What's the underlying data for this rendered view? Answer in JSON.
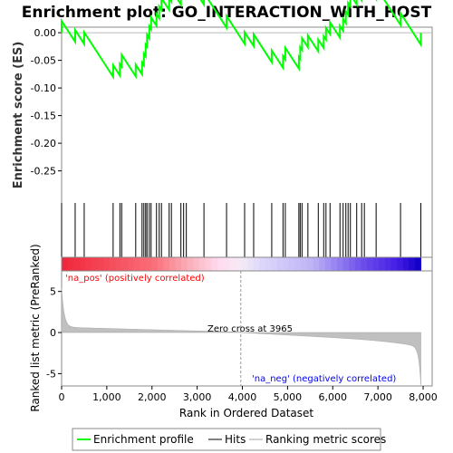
{
  "chart_data": {
    "type": "line",
    "title": "Enrichment plot: GO_INTERACTION_WITH_HOST",
    "es_panel": {
      "ylabel": "Enrichment score (ES)",
      "ylim": [
        -0.29,
        0.01
      ],
      "yticks": [
        "0.00",
        "-0.05",
        "-0.10",
        "-0.15",
        "-0.20",
        "-0.25"
      ],
      "ytick_values": [
        0.0,
        -0.05,
        -0.1,
        -0.15,
        -0.2,
        -0.25
      ],
      "line_color": "#00ff00",
      "hits": [
        0,
        300,
        500,
        1140,
        1290,
        1330,
        1640,
        1780,
        1820,
        1860,
        1890,
        1940,
        1980,
        2100,
        2160,
        2210,
        2380,
        2430,
        2640,
        2700,
        2760,
        3150,
        3650,
        4050,
        4250,
        4650,
        4900,
        4950,
        5250,
        5280,
        5320,
        5450,
        5680,
        5800,
        5850,
        5940,
        6160,
        6230,
        6290,
        6340,
        6390,
        6530,
        6640,
        6700,
        6960,
        7500,
        7950
      ]
    },
    "ranking_panel": {
      "ylabel": "Ranked list metric (PreRanked)",
      "ylim": [
        -6.5,
        7.5
      ],
      "yticks": [
        "5",
        "0",
        "-5"
      ],
      "ytick_values": [
        5,
        0,
        -5
      ],
      "zero_cross_label": "Zero cross at 3965",
      "zero_cross": 3965,
      "pos_label": "'na_pos' (positively correlated)",
      "neg_label": "'na_neg' (negatively correlated)"
    },
    "x": {
      "xlabel": "Rank in Ordered Dataset",
      "xlim": [
        0,
        8200
      ],
      "xticks": [
        "0",
        "1,000",
        "2,000",
        "3,000",
        "4,000",
        "5,000",
        "6,000",
        "7,000",
        "8,000"
      ],
      "xtick_values": [
        0,
        1000,
        2000,
        3000,
        4000,
        5000,
        6000,
        7000,
        8000
      ],
      "n_genes": 7950
    },
    "legend": {
      "placement": "bottom",
      "items": [
        "Enrichment profile",
        "Hits",
        "Ranking metric scores"
      ]
    }
  }
}
